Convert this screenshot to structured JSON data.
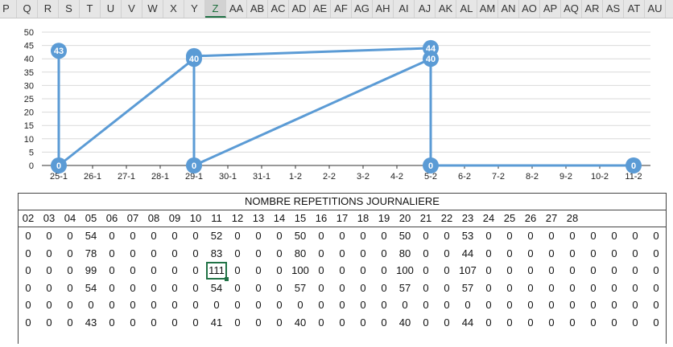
{
  "spreadsheet": {
    "columns": [
      "P",
      "Q",
      "R",
      "S",
      "T",
      "U",
      "V",
      "W",
      "X",
      "Y",
      "Z",
      "AA",
      "AB",
      "AC",
      "AD",
      "AE",
      "AF",
      "AG",
      "AH",
      "AI",
      "AJ",
      "AK",
      "AL",
      "AM",
      "AN",
      "AO",
      "AP",
      "AQ",
      "AR",
      "AS",
      "AT",
      "AU"
    ],
    "selected_column": "Z"
  },
  "chart_data": {
    "type": "line",
    "categories": [
      "25-1",
      "26-1",
      "27-1",
      "28-1",
      "29-1",
      "30-1",
      "31-1",
      "1-2",
      "2-2",
      "3-2",
      "4-2",
      "5-2",
      "6-2",
      "7-2",
      "8-2",
      "9-2",
      "10-2",
      "11-2"
    ],
    "y_ticks": [
      "0",
      "5",
      "10",
      "15",
      "20",
      "25",
      "30",
      "35",
      "40",
      "45",
      "50"
    ],
    "ylim": [
      0,
      50
    ],
    "grid": true,
    "series_color": "#5b9bd5",
    "series": [
      {
        "points": [
          [
            0,
            43
          ],
          [
            0,
            0
          ],
          [
            4,
            40
          ],
          [
            4,
            0
          ],
          [
            11,
            40
          ],
          [
            11,
            0
          ],
          [
            17,
            0
          ]
        ]
      },
      {
        "points": [
          [
            4,
            41
          ],
          [
            11,
            44
          ]
        ]
      }
    ],
    "labels": [
      {
        "x": 0,
        "y": 43,
        "text": "43"
      },
      {
        "x": 0,
        "y": 0,
        "text": "0"
      },
      {
        "x": 4,
        "y": 41,
        "text": "41"
      },
      {
        "x": 4,
        "y": 40,
        "text": "40"
      },
      {
        "x": 4,
        "y": 0,
        "text": "0"
      },
      {
        "x": 11,
        "y": 44,
        "text": "44"
      },
      {
        "x": 11,
        "y": 40,
        "text": "40"
      },
      {
        "x": 11,
        "y": 0,
        "text": "0"
      },
      {
        "x": 17,
        "y": 0,
        "text": "0"
      }
    ]
  },
  "table": {
    "title": "NOMBRE REPETITIONS JOURNALIERE",
    "headers": [
      "02",
      "03",
      "04",
      "05",
      "06",
      "07",
      "08",
      "09",
      "10",
      "11",
      "12",
      "13",
      "14",
      "15",
      "16",
      "17",
      "18",
      "19",
      "20",
      "21",
      "22",
      "23",
      "24",
      "25",
      "26",
      "27",
      "28",
      "",
      "",
      "",
      "",
      ""
    ],
    "rows": [
      [
        "0",
        "0",
        "0",
        "54",
        "0",
        "0",
        "0",
        "0",
        "0",
        "52",
        "0",
        "0",
        "0",
        "50",
        "0",
        "0",
        "0",
        "0",
        "50",
        "0",
        "0",
        "53",
        "0",
        "0",
        "0",
        "0",
        "0",
        "0",
        "0",
        "0",
        "0",
        "0"
      ],
      [
        "0",
        "0",
        "0",
        "78",
        "0",
        "0",
        "0",
        "0",
        "0",
        "83",
        "0",
        "0",
        "0",
        "80",
        "0",
        "0",
        "0",
        "0",
        "80",
        "0",
        "0",
        "44",
        "0",
        "0",
        "0",
        "0",
        "0",
        "0",
        "0",
        "0",
        "0",
        "0"
      ],
      [
        "0",
        "0",
        "0",
        "99",
        "0",
        "0",
        "0",
        "0",
        "0",
        "111",
        "0",
        "0",
        "0",
        "100",
        "0",
        "0",
        "0",
        "0",
        "100",
        "0",
        "0",
        "107",
        "0",
        "0",
        "0",
        "0",
        "0",
        "0",
        "0",
        "0",
        "0",
        "0"
      ],
      [
        "0",
        "0",
        "0",
        "54",
        "0",
        "0",
        "0",
        "0",
        "0",
        "54",
        "0",
        "0",
        "0",
        "57",
        "0",
        "0",
        "0",
        "0",
        "57",
        "0",
        "0",
        "57",
        "0",
        "0",
        "0",
        "0",
        "0",
        "0",
        "0",
        "0",
        "0",
        "0"
      ],
      [
        "0",
        "0",
        "0",
        "0",
        "0",
        "0",
        "0",
        "0",
        "0",
        "0",
        "0",
        "0",
        "0",
        "0",
        "0",
        "0",
        "0",
        "0",
        "0",
        "0",
        "0",
        "0",
        "0",
        "0",
        "0",
        "0",
        "0",
        "0",
        "0",
        "0",
        "0",
        "0"
      ],
      [
        "0",
        "0",
        "0",
        "43",
        "0",
        "0",
        "0",
        "0",
        "0",
        "41",
        "0",
        "0",
        "0",
        "40",
        "0",
        "0",
        "0",
        "0",
        "40",
        "0",
        "0",
        "44",
        "0",
        "0",
        "0",
        "0",
        "0",
        "0",
        "0",
        "0",
        "0",
        "0"
      ]
    ],
    "selected_cell": {
      "row": 2,
      "col": 9
    }
  }
}
